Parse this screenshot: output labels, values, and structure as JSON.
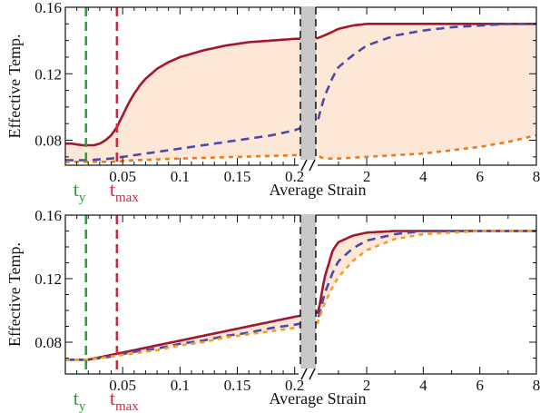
{
  "chart_data": [
    {
      "type": "line",
      "panel": "top",
      "xlabel": "Average Strain",
      "ylabel": "Effective Temp.",
      "ylim": [
        0.065,
        0.16
      ],
      "yticks": [
        "0.08",
        "0.12",
        "0.16"
      ],
      "x_axis_break": "linear 0 to 0.2, then 0.2 to 8",
      "xticks_left": [
        "0.05",
        "0.1",
        "0.15",
        "0.2"
      ],
      "xticks_right": [
        "2",
        "4",
        "6",
        "8"
      ],
      "markers": [
        {
          "label_main": "t",
          "label_sub": "y",
          "x": 0.018,
          "color": "#27a33a"
        },
        {
          "label_main": "t",
          "label_sub": "max",
          "x": 0.045,
          "color": "#e0203a"
        }
      ],
      "series": [
        {
          "style": "solid",
          "color": "#a3172e",
          "x": [
            0,
            0.005,
            0.01,
            0.015,
            0.02,
            0.025,
            0.03,
            0.035,
            0.04,
            0.045,
            0.05,
            0.055,
            0.06,
            0.065,
            0.07,
            0.08,
            0.09,
            0.1,
            0.12,
            0.14,
            0.16,
            0.18,
            0.2,
            0.5,
            1,
            1.5,
            2,
            3,
            4,
            5,
            6,
            7,
            8
          ],
          "y": [
            0.078,
            0.078,
            0.0775,
            0.077,
            0.077,
            0.077,
            0.078,
            0.08,
            0.083,
            0.088,
            0.095,
            0.102,
            0.108,
            0.113,
            0.117,
            0.123,
            0.127,
            0.13,
            0.134,
            0.137,
            0.139,
            0.14,
            0.141,
            0.143,
            0.147,
            0.149,
            0.15,
            0.15,
            0.15,
            0.15,
            0.15,
            0.15,
            0.15
          ]
        },
        {
          "style": "dashed",
          "color": "#4b4aa8",
          "x": [
            0,
            0.02,
            0.04,
            0.06,
            0.08,
            0.1,
            0.12,
            0.14,
            0.16,
            0.18,
            0.2,
            0.3,
            0.5,
            0.8,
            1,
            1.5,
            2,
            3,
            4,
            5,
            6,
            7,
            8
          ],
          "y": [
            0.068,
            0.068,
            0.069,
            0.071,
            0.073,
            0.075,
            0.077,
            0.079,
            0.081,
            0.083,
            0.086,
            0.094,
            0.106,
            0.118,
            0.124,
            0.131,
            0.137,
            0.143,
            0.146,
            0.148,
            0.149,
            0.15,
            0.15
          ]
        },
        {
          "style": "dotted",
          "color": "#ec7a1c",
          "x": [
            0,
            0.02,
            0.04,
            0.06,
            0.1,
            0.15,
            0.2,
            0.5,
            1,
            2,
            3,
            4,
            5,
            6,
            7,
            8
          ],
          "y": [
            0.067,
            0.067,
            0.067,
            0.068,
            0.069,
            0.07,
            0.071,
            0.069,
            0.069,
            0.07,
            0.071,
            0.072,
            0.074,
            0.076,
            0.079,
            0.083
          ]
        }
      ]
    },
    {
      "type": "line",
      "panel": "bottom",
      "xlabel": "Average Strain",
      "ylabel": "Effective Temp.",
      "ylim": [
        0.06,
        0.16
      ],
      "yticks": [
        "0.08",
        "0.12",
        "0.16"
      ],
      "x_axis_break": "linear 0 to 0.2, then 0.2 to 8",
      "xticks_left": [
        "0.05",
        "0.1",
        "0.15",
        "0.2"
      ],
      "xticks_right": [
        "2",
        "4",
        "6",
        "8"
      ],
      "markers": [
        {
          "label_main": "t",
          "label_sub": "y",
          "x": 0.018,
          "color": "#27a33a"
        },
        {
          "label_main": "t",
          "label_sub": "max",
          "x": 0.045,
          "color": "#e0203a"
        }
      ],
      "series": [
        {
          "style": "solid",
          "color": "#a3172e",
          "x": [
            0,
            0.02,
            0.04,
            0.06,
            0.08,
            0.1,
            0.12,
            0.14,
            0.16,
            0.18,
            0.2,
            0.3,
            0.5,
            0.8,
            1,
            1.5,
            2,
            3,
            4,
            5,
            6,
            7,
            8
          ],
          "y": [
            0.069,
            0.069,
            0.072,
            0.075,
            0.078,
            0.081,
            0.084,
            0.087,
            0.09,
            0.093,
            0.096,
            0.1,
            0.12,
            0.138,
            0.143,
            0.147,
            0.149,
            0.15,
            0.15,
            0.15,
            0.15,
            0.15,
            0.15
          ]
        },
        {
          "style": "dashed",
          "color": "#4b4aa8",
          "x": [
            0,
            0.02,
            0.04,
            0.06,
            0.08,
            0.1,
            0.12,
            0.14,
            0.16,
            0.18,
            0.2,
            0.3,
            0.5,
            0.8,
            1,
            1.5,
            2,
            3,
            4,
            5,
            6,
            7,
            8
          ],
          "y": [
            0.069,
            0.069,
            0.071,
            0.074,
            0.076,
            0.079,
            0.081,
            0.084,
            0.086,
            0.089,
            0.091,
            0.096,
            0.11,
            0.124,
            0.131,
            0.139,
            0.144,
            0.148,
            0.15,
            0.15,
            0.15,
            0.15,
            0.15
          ]
        },
        {
          "style": "dotted",
          "color": "#f0a020",
          "x": [
            0,
            0.02,
            0.04,
            0.06,
            0.08,
            0.1,
            0.12,
            0.14,
            0.16,
            0.18,
            0.2,
            0.3,
            0.5,
            0.8,
            1,
            1.5,
            2,
            3,
            4,
            5,
            6,
            7,
            8
          ],
          "y": [
            0.069,
            0.069,
            0.071,
            0.073,
            0.075,
            0.078,
            0.08,
            0.083,
            0.085,
            0.087,
            0.089,
            0.094,
            0.104,
            0.115,
            0.121,
            0.131,
            0.138,
            0.145,
            0.148,
            0.149,
            0.15,
            0.15,
            0.15
          ]
        }
      ]
    }
  ]
}
